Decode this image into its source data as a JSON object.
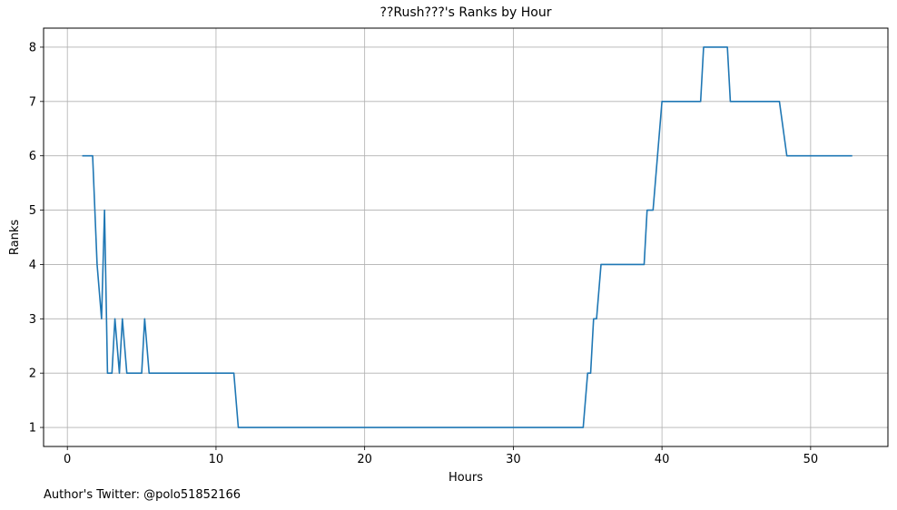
{
  "chart_data": {
    "type": "line",
    "title": "??Rush???'s Ranks by Hour",
    "xlabel": "Hours",
    "ylabel": "Ranks",
    "xlim": [
      -1.6,
      55.2
    ],
    "ylim": [
      0.65,
      8.35
    ],
    "xticks": [
      0,
      10,
      20,
      30,
      40,
      50
    ],
    "yticks": [
      1,
      2,
      3,
      4,
      5,
      6,
      7,
      8
    ],
    "grid": true,
    "line_color": "#1f77b4",
    "series": [
      {
        "x": [
          1.0,
          1.7,
          2.0,
          2.3,
          2.5,
          2.7,
          3.0,
          3.2,
          3.5,
          3.7,
          4.0,
          4.5,
          5.0,
          5.2,
          5.5,
          6.0,
          11.2,
          11.5,
          34.7,
          35.0,
          35.2,
          35.4,
          35.6,
          35.9,
          38.8,
          39.0,
          39.4,
          40.0,
          42.6,
          42.8,
          44.4,
          44.6,
          47.9,
          48.4,
          52.8
        ],
        "y": [
          6,
          6,
          4,
          3,
          5,
          2,
          2,
          3,
          2,
          3,
          2,
          2,
          2,
          3,
          2,
          2,
          2,
          1,
          1,
          2,
          2,
          3,
          3,
          4,
          4,
          5,
          5,
          7,
          7,
          8,
          8,
          7,
          7,
          6,
          6
        ]
      }
    ]
  },
  "footer_text": "Author's Twitter: @polo51852166"
}
